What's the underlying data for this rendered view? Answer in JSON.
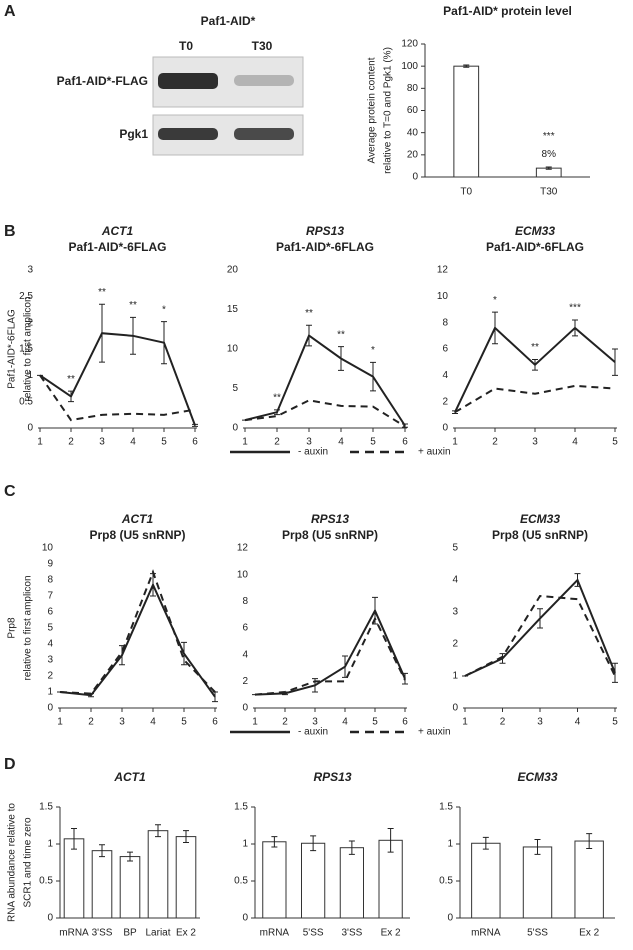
{
  "panels": [
    "A",
    "B",
    "C",
    "D"
  ],
  "blot": {
    "title": "Paf1-AID*",
    "lanes": [
      "T0",
      "T30"
    ],
    "rows": [
      "Paf1-AID*-FLAG",
      "Pgk1"
    ]
  },
  "chart_data": [
    {
      "type": "bar",
      "title": "Paf1-AID* protein level",
      "ylabel": [
        "Average protein content",
        "relative to T=0 and Pgk1 (%)"
      ],
      "categories": [
        "T0",
        "T30"
      ],
      "values": [
        100,
        8
      ],
      "errors": [
        1,
        1
      ],
      "value_labels": [
        null,
        "8%"
      ],
      "stars": [
        null,
        "***"
      ],
      "color": "#ffffff",
      "edge": "#333333",
      "ylim": [
        0,
        120
      ],
      "yticks": [
        0,
        20,
        40,
        60,
        80,
        100,
        120
      ]
    },
    {
      "type": "line",
      "title": "ACT1",
      "subtitle": "Paf1-AID*-6FLAG",
      "ylabel": [
        "Paf1-AID*-6FLAG",
        "relative to first amplicon"
      ],
      "x": [
        1,
        2,
        3,
        4,
        5,
        6
      ],
      "xlim": [
        1,
        6
      ],
      "xticks": [
        1,
        2,
        3,
        4,
        5,
        6
      ],
      "ylim": [
        0,
        3
      ],
      "yticks": [
        0,
        0.5,
        1,
        1.5,
        2,
        2.5,
        3
      ],
      "stars": [
        null,
        "**",
        "**",
        "**",
        "*",
        null
      ],
      "series": [
        {
          "color": "#222222",
          "dash": "solid",
          "values": [
            1,
            0.6,
            1.8,
            1.75,
            1.62,
            0.05
          ],
          "errors": [
            0,
            0.1,
            0.55,
            0.35,
            0.4,
            0.02
          ]
        },
        {
          "color": "#222222",
          "dash": "dashed",
          "values": [
            1,
            0.15,
            0.25,
            0.27,
            0.25,
            0.35
          ]
        }
      ]
    },
    {
      "type": "line",
      "title": "RPS13",
      "subtitle": "Paf1-AID*-6FLAG",
      "legend": true,
      "x": [
        1,
        2,
        3,
        4,
        5,
        6
      ],
      "xlim": [
        1,
        6
      ],
      "xticks": [
        1,
        2,
        3,
        4,
        5,
        6
      ],
      "ylim": [
        0,
        20
      ],
      "yticks": [
        0,
        5,
        10,
        15,
        20
      ],
      "stars": [
        null,
        "**",
        "**",
        "**",
        "*",
        null
      ],
      "series": [
        {
          "name": "- auxin",
          "color": "#222222",
          "dash": "solid",
          "values": [
            1,
            2,
            11.7,
            8.8,
            6.5,
            0.3
          ],
          "errors": [
            0,
            0.3,
            1.3,
            1.5,
            1.8,
            0.2
          ]
        },
        {
          "name": "+ auxin",
          "color": "#222222",
          "dash": "dashed",
          "values": [
            1,
            1.5,
            3.5,
            2.8,
            2.7,
            0.2
          ]
        }
      ]
    },
    {
      "type": "line",
      "title": "ECM33",
      "subtitle": "Paf1-AID*-6FLAG",
      "x": [
        1,
        2,
        3,
        4,
        5
      ],
      "xlim": [
        1,
        5
      ],
      "xticks": [
        1,
        2,
        3,
        4,
        5
      ],
      "ylim": [
        0,
        12
      ],
      "yticks": [
        0,
        2,
        4,
        6,
        8,
        10,
        12
      ],
      "stars": [
        null,
        "*",
        "**",
        "***",
        null
      ],
      "series": [
        {
          "color": "#222222",
          "dash": "solid",
          "values": [
            1.2,
            7.6,
            4.8,
            7.6,
            5.0
          ],
          "errors": [
            0.1,
            1.2,
            0.4,
            0.6,
            1.0
          ]
        },
        {
          "color": "#222222",
          "dash": "dashed",
          "values": [
            1.2,
            3.0,
            2.6,
            3.2,
            3.0
          ]
        }
      ]
    },
    {
      "type": "line",
      "title": "ACT1",
      "subtitle": "Prp8 (U5 snRNP)",
      "ylabel": [
        "Prp8",
        "relative to first amplicon"
      ],
      "x": [
        1,
        2,
        3,
        4,
        5,
        6
      ],
      "xlim": [
        1,
        6
      ],
      "xticks": [
        1,
        2,
        3,
        4,
        5,
        6
      ],
      "ylim": [
        0,
        10
      ],
      "yticks": [
        0,
        1,
        2,
        3,
        4,
        5,
        6,
        7,
        8,
        9,
        10
      ],
      "series": [
        {
          "color": "#222222",
          "dash": "solid",
          "values": [
            1,
            0.8,
            3.3,
            7.7,
            3.4,
            0.7
          ],
          "errors": [
            0,
            0.1,
            0.6,
            0.7,
            0.7,
            0.3
          ]
        },
        {
          "color": "#222222",
          "dash": "dashed",
          "values": [
            1,
            0.9,
            3.5,
            8.5,
            3.0,
            1.0
          ]
        }
      ]
    },
    {
      "type": "line",
      "title": "RPS13",
      "subtitle": "Prp8 (U5 snRNP)",
      "legend": true,
      "x": [
        1,
        2,
        3,
        4,
        5,
        6
      ],
      "xlim": [
        1,
        6
      ],
      "xticks": [
        1,
        2,
        3,
        4,
        5,
        6
      ],
      "ylim": [
        0,
        12
      ],
      "yticks": [
        0,
        2,
        4,
        6,
        8,
        10,
        12
      ],
      "series": [
        {
          "name": "- auxin",
          "color": "#222222",
          "dash": "solid",
          "values": [
            1,
            1.1,
            1.7,
            3.1,
            7.3,
            2.2
          ],
          "errors": [
            0,
            0.1,
            0.5,
            0.8,
            1.0,
            0.4
          ]
        },
        {
          "name": "+ auxin",
          "color": "#222222",
          "dash": "dashed",
          "values": [
            1,
            1.2,
            2.0,
            2.0,
            6.7,
            2.1
          ]
        }
      ]
    },
    {
      "type": "line",
      "title": "ECM33",
      "subtitle": "Prp8 (U5 snRNP)",
      "x": [
        1,
        2,
        3,
        4,
        5
      ],
      "xlim": [
        1,
        5
      ],
      "xticks": [
        1,
        2,
        3,
        4,
        5
      ],
      "ylim": [
        0,
        5
      ],
      "yticks": [
        0,
        1,
        2,
        3,
        4,
        5
      ],
      "series": [
        {
          "color": "#222222",
          "dash": "solid",
          "values": [
            1,
            1.55,
            2.8,
            4.0,
            1.1
          ],
          "errors": [
            0,
            0.15,
            0.3,
            0.2,
            0.3
          ]
        },
        {
          "color": "#222222",
          "dash": "dashed",
          "values": [
            1,
            1.6,
            3.5,
            3.4,
            1.0
          ]
        }
      ]
    },
    {
      "type": "bar",
      "title": "ACT1",
      "ylabel": [
        "RNA abundance relative to",
        "SCR1 and time zero"
      ],
      "categories": [
        "mRNA",
        "3'SS",
        "BP",
        "Lariat",
        "Ex 2"
      ],
      "values": [
        1.07,
        0.91,
        0.83,
        1.18,
        1.1
      ],
      "errors": [
        0.14,
        0.08,
        0.06,
        0.08,
        0.08
      ],
      "color": "#ffffff",
      "edge": "#333333",
      "ylim": [
        0,
        1.5
      ],
      "yticks": [
        0,
        0.5,
        1,
        1.5
      ]
    },
    {
      "type": "bar",
      "title": "RPS13",
      "categories": [
        "mRNA",
        "5'SS",
        "3'SS",
        "Ex 2"
      ],
      "values": [
        1.03,
        1.01,
        0.95,
        1.05
      ],
      "errors": [
        0.07,
        0.1,
        0.09,
        0.16
      ],
      "color": "#ffffff",
      "edge": "#333333",
      "ylim": [
        0,
        1.5
      ],
      "yticks": [
        0,
        0.5,
        1,
        1.5
      ]
    },
    {
      "type": "bar",
      "title": "ECM33",
      "categories": [
        "mRNA",
        "5'SS",
        "Ex 2"
      ],
      "values": [
        1.01,
        0.96,
        1.04
      ],
      "errors": [
        0.08,
        0.1,
        0.1
      ],
      "color": "#ffffff",
      "edge": "#333333",
      "ylim": [
        0,
        1.5
      ],
      "yticks": [
        0,
        0.5,
        1,
        1.5
      ]
    }
  ]
}
